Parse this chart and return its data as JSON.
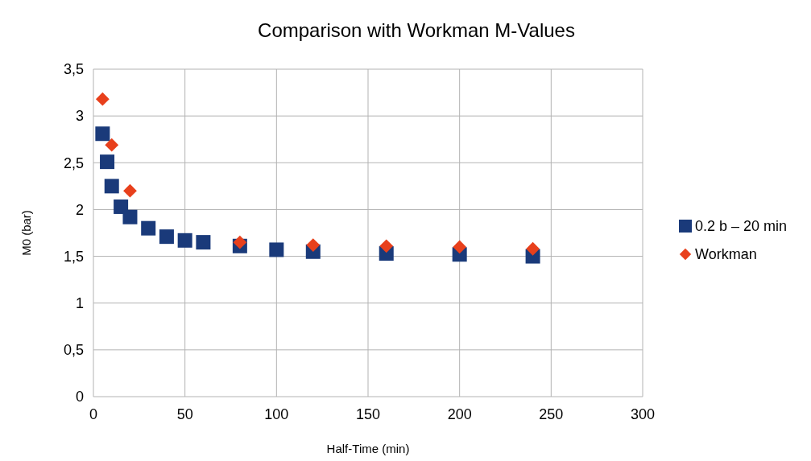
{
  "chart_data": {
    "type": "scatter",
    "title": "Comparison with Workman M-Values",
    "xlabel": "Half-Time (min)",
    "ylabel": "M0 (bar)",
    "xlim": [
      0,
      300
    ],
    "xticks": [
      0,
      50,
      100,
      150,
      200,
      250,
      300
    ],
    "ylim": [
      0,
      3.5
    ],
    "yticks": [
      0,
      {
        "value": 0.5,
        "label": "0,5"
      },
      1,
      {
        "value": 1.5,
        "label": "1,5"
      },
      2,
      {
        "value": 2.5,
        "label": "2,5"
      },
      3,
      {
        "value": 3.5,
        "label": "3,5"
      }
    ],
    "grid": true,
    "legend": "right",
    "series": [
      {
        "name": "0.2 b – 20 min",
        "color": "#1a3a7a",
        "marker": "square",
        "x": [
          5,
          7.5,
          10,
          15,
          20,
          30,
          40,
          50,
          60,
          80,
          100,
          120,
          160,
          200,
          240
        ],
        "values": [
          2.81,
          2.51,
          2.25,
          2.03,
          1.92,
          1.8,
          1.71,
          1.67,
          1.65,
          1.61,
          1.57,
          1.55,
          1.53,
          1.52,
          1.5
        ]
      },
      {
        "name": "Workman",
        "color": "#e8401c",
        "marker": "diamond",
        "x": [
          5,
          10,
          20,
          80,
          120,
          160,
          200,
          240
        ],
        "values": [
          3.18,
          2.69,
          2.2,
          1.65,
          1.62,
          1.61,
          1.6,
          1.58
        ]
      }
    ]
  }
}
